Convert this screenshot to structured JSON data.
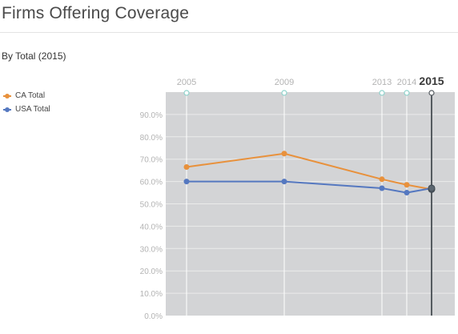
{
  "page": {
    "title": "Firms Offering Coverage",
    "subtitle": "By Total (2015)"
  },
  "colors": {
    "ca": "#e8913c",
    "usa": "#5578c0",
    "plot_bg": "#d3d4d6",
    "grid": "#ebebeb",
    "guide": "#ffffff",
    "cursor": "#555b60"
  },
  "chart_data": {
    "type": "line",
    "x": [
      2005,
      2009,
      2013,
      2014,
      2015
    ],
    "x_tick_labels": [
      "2005",
      "2009",
      "2013",
      "2014",
      "2015"
    ],
    "selected_year": "2015",
    "series": [
      {
        "name": "CA Total",
        "values": [
          66.5,
          72.5,
          61.0,
          58.5,
          56.5
        ]
      },
      {
        "name": "USA Total",
        "values": [
          60.0,
          60.0,
          57.0,
          55.0,
          57.0
        ]
      }
    ],
    "ylim": [
      0,
      100
    ],
    "y_tick_labels": [
      "0.0%",
      "10.0%",
      "20.0%",
      "30.0%",
      "40.0%",
      "50.0%",
      "60.0%",
      "70.0%",
      "80.0%",
      "90.0%"
    ],
    "grid": true,
    "legend_position": "left"
  }
}
